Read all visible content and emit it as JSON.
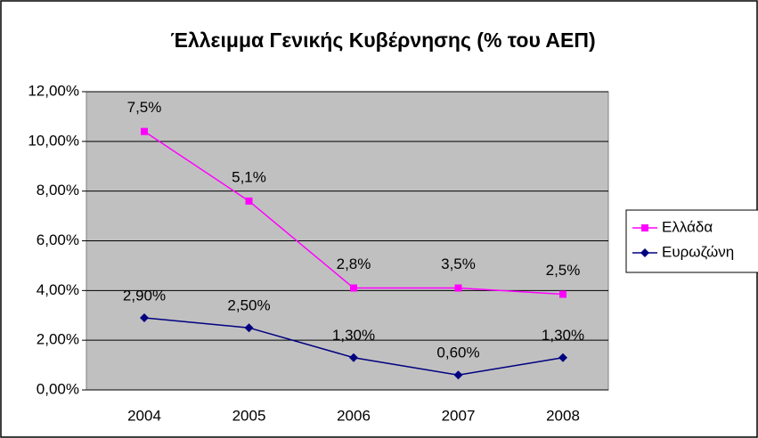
{
  "chart_data": {
    "type": "line",
    "title": "Έλλειμμα Γενικής Κυβέρνησης (% του ΑΕΠ)",
    "categories": [
      "2004",
      "2005",
      "2006",
      "2007",
      "2008"
    ],
    "series": [
      {
        "name": "Ελλάδα",
        "color": "#ff00ff",
        "marker": "square",
        "values": [
          10.4,
          7.6,
          4.1,
          4.1,
          3.85
        ],
        "annotations": [
          "7,5%",
          "5,1%",
          "2,8%",
          "3,5%",
          "2,5%"
        ]
      },
      {
        "name": "Ευρωζώνη",
        "color": "#000080",
        "marker": "diamond",
        "values": [
          2.9,
          2.5,
          1.3,
          0.6,
          1.3
        ],
        "value_labels": [
          "2,90%",
          "2,50%",
          "1,30%",
          "0,60%",
          "1,30%"
        ]
      }
    ],
    "ylim": [
      0,
      12
    ],
    "yticks": [
      {
        "value": 0,
        "label": "0,00%"
      },
      {
        "value": 2,
        "label": "2,00%"
      },
      {
        "value": 4,
        "label": "4,00%"
      },
      {
        "value": 6,
        "label": "6,00%"
      },
      {
        "value": 8,
        "label": "8,00%"
      },
      {
        "value": 10,
        "label": "10,00%"
      },
      {
        "value": 12,
        "label": "12,00%"
      }
    ],
    "grid": true,
    "legend": "right",
    "plot_background": "#c0c0c0"
  }
}
